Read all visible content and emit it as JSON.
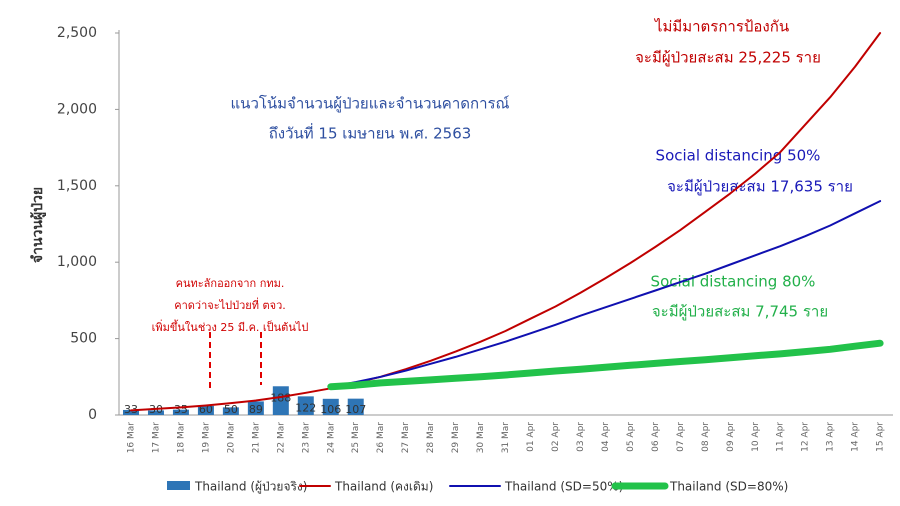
{
  "chart_data": {
    "type": "combo",
    "y_label": "จำนวนผู้ป่วย",
    "annotations": {
      "title": [
        "แนวโน้มจำนวนผู้ป่วยและจำนวนคาดการณ์",
        "ถึงวันที่ 15 เมษายน พ.ศ. 2563"
      ],
      "baseline": [
        "ไม่มีมาตรการป้องกัน",
        "จะมีผู้ป่วยสะสม 25,225 ราย"
      ],
      "sd50": [
        "Social distancing 50%",
        "จะมีผู้ป่วยสะสม 17,635 ราย"
      ],
      "sd80": [
        "Social distancing 80%",
        "จะมีผู้ป่วยสะสม 7,745 ราย"
      ],
      "note": [
        "คนทะลักออกจาก กทม.",
        "คาดว่าจะไปป่วยที่ ตจว.",
        "เพิ่มขึ้นในช่วง  25 มี.ค. เป็นต้นไป"
      ]
    },
    "categories": [
      "16 Mar",
      "17 Mar",
      "18 Mar",
      "19 Mar",
      "20 Mar",
      "21 Mar",
      "22 Mar",
      "23 Mar",
      "24 Mar",
      "25 Mar",
      "26 Mar",
      "27 Mar",
      "28 Mar",
      "29 Mar",
      "30 Mar",
      "31 Mar",
      "01 Apr",
      "02 Apr",
      "03 Apr",
      "04 Apr",
      "05 Apr",
      "06 Apr",
      "07 Apr",
      "08 Apr",
      "09 Apr",
      "10 Apr",
      "11 Apr",
      "12 Apr",
      "13 Apr",
      "14 Apr",
      "15 Apr"
    ],
    "series": [
      {
        "name": "Thailand (ผู้ป่วยจริง)",
        "type": "bar",
        "color": "#2e75b6",
        "values": [
          33,
          30,
          35,
          60,
          50,
          89,
          188,
          122,
          106,
          107,
          null,
          null,
          null,
          null,
          null,
          null,
          null,
          null,
          null,
          null,
          null,
          null,
          null,
          null,
          null,
          null,
          null,
          null,
          null,
          null,
          null
        ]
      },
      {
        "name": "Thailand (คงเดิม)",
        "type": "line",
        "color": "#c00000",
        "values": [
          30,
          40,
          50,
          62,
          78,
          95,
          118,
          145,
          175,
          210,
          250,
          300,
          355,
          415,
          480,
          550,
          630,
          710,
          800,
          895,
          995,
          1100,
          1210,
          1330,
          1450,
          1580,
          1720,
          1900,
          2080,
          2280,
          2500
        ]
      },
      {
        "name": "Thailand (SD=50%)",
        "type": "line",
        "color": "#1010b0",
        "values": [
          null,
          null,
          null,
          null,
          null,
          null,
          null,
          null,
          185,
          215,
          250,
          290,
          335,
          380,
          430,
          480,
          535,
          590,
          650,
          705,
          760,
          815,
          870,
          925,
          985,
          1045,
          1105,
          1170,
          1240,
          1320,
          1400
        ]
      },
      {
        "name": "Thailand (SD=80%)",
        "type": "line",
        "color": "#22c24a",
        "values": [
          null,
          null,
          null,
          null,
          null,
          null,
          null,
          null,
          185,
          195,
          210,
          220,
          230,
          240,
          250,
          262,
          275,
          288,
          300,
          312,
          325,
          338,
          350,
          362,
          375,
          388,
          400,
          415,
          430,
          450,
          470
        ]
      }
    ],
    "ylim": [
      0,
      2500
    ],
    "yticks": [
      0,
      500,
      {
        "value": 1000,
        "label": "1,000"
      },
      {
        "value": 1500,
        "label": "1,500"
      },
      {
        "value": 2000,
        "label": "2,000"
      },
      {
        "value": 2500,
        "label": "2,500"
      }
    ]
  }
}
